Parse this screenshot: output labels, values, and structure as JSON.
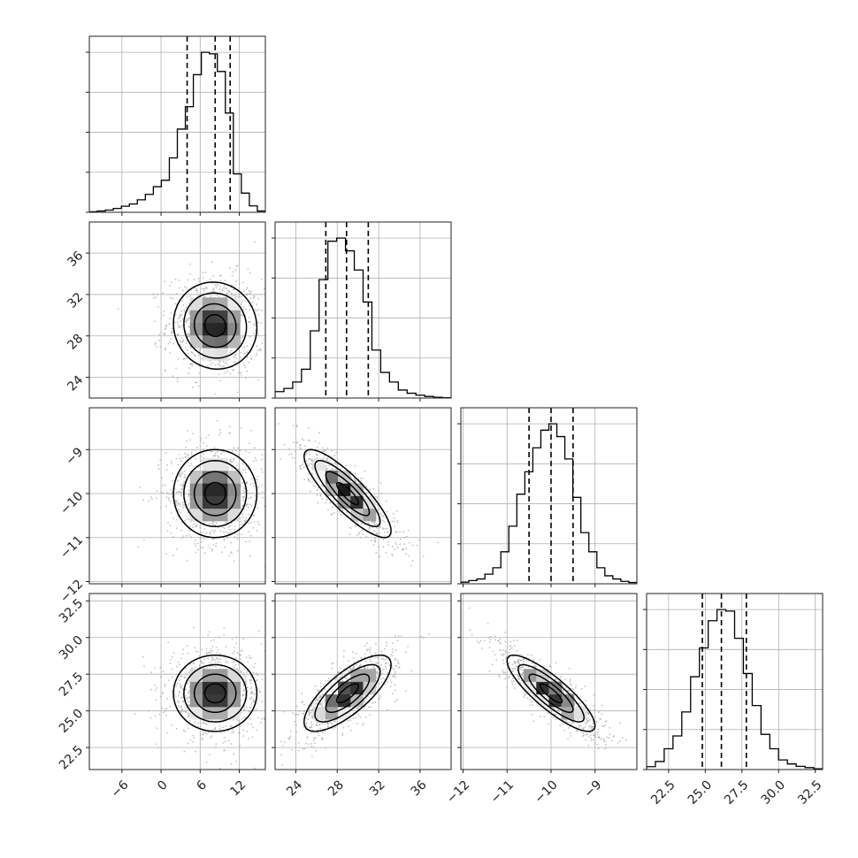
{
  "chart_data": {
    "type": "corner",
    "title": "",
    "params": [
      {
        "ticks": [
          -6,
          0,
          6,
          12
        ],
        "tick_labels": [
          "−6",
          "0",
          "6",
          "12"
        ],
        "range": [
          -11,
          16
        ],
        "quantiles": [
          4.0,
          8.3,
          10.6
        ],
        "mean": 8.3,
        "sd": 3.2
      },
      {
        "ticks": [
          24,
          28,
          32,
          36
        ],
        "tick_labels": [
          "24",
          "28",
          "32",
          "36"
        ],
        "range": [
          22,
          39
        ],
        "quantiles": [
          26.9,
          28.9,
          31.0
        ],
        "mean": 29.0,
        "sd": 2.1
      },
      {
        "ticks": [
          -12,
          -11,
          -10,
          -9
        ],
        "tick_labels": [
          "−12",
          "−11",
          "−10",
          "−9"
        ],
        "range": [
          -12.05,
          -8.05
        ],
        "quantiles": [
          -10.5,
          -10.0,
          -9.5
        ],
        "mean": -10.0,
        "sd": 0.5
      },
      {
        "ticks": [
          22.5,
          25.0,
          27.5,
          30.0,
          32.5
        ],
        "tick_labels": [
          "22.5",
          "25.0",
          "27.5",
          "30.0",
          "32.5"
        ],
        "range": [
          21.0,
          33.0
        ],
        "quantiles": [
          24.8,
          26.1,
          27.8
        ],
        "mean": 26.2,
        "sd": 1.3
      }
    ],
    "correlations": [
      [
        1.0,
        -0.05,
        0.0,
        0.0
      ],
      [
        -0.05,
        1.0,
        -0.85,
        0.75
      ],
      [
        0.0,
        -0.85,
        1.0,
        -0.85
      ],
      [
        0.0,
        0.75,
        -0.85,
        1.0
      ]
    ],
    "histograms": [
      [
        0.003,
        0.008,
        0.014,
        0.024,
        0.038,
        0.052,
        0.078,
        0.112,
        0.16,
        0.2,
        0.34,
        0.52,
        0.66,
        0.86,
        1.0,
        0.99,
        0.88,
        0.62,
        0.24,
        0.12,
        0.04,
        0.008
      ],
      [
        0.04,
        0.06,
        0.1,
        0.18,
        0.42,
        0.74,
        0.98,
        1.0,
        0.92,
        0.8,
        0.6,
        0.3,
        0.16,
        0.1,
        0.05,
        0.03,
        0.018,
        0.01,
        0.005,
        0.002
      ],
      [
        0.01,
        0.02,
        0.03,
        0.06,
        0.1,
        0.2,
        0.36,
        0.56,
        0.7,
        0.85,
        0.96,
        1.0,
        0.92,
        0.78,
        0.54,
        0.32,
        0.2,
        0.1,
        0.05,
        0.03,
        0.015,
        0.008
      ],
      [
        0.018,
        0.05,
        0.13,
        0.21,
        0.36,
        0.58,
        0.76,
        0.93,
        1.0,
        0.99,
        0.82,
        0.6,
        0.4,
        0.22,
        0.13,
        0.06,
        0.035,
        0.02,
        0.012,
        0.005
      ]
    ],
    "histogram_ylim": [
      0,
      1.1
    ],
    "contour_levels": [
      0.5,
      1.0,
      1.5,
      2.0
    ],
    "grid": true,
    "colors": {
      "scatter": "#a6a6a6",
      "line": "#000000",
      "grid": "#b0b0b0",
      "density_dark": "#000000"
    }
  }
}
